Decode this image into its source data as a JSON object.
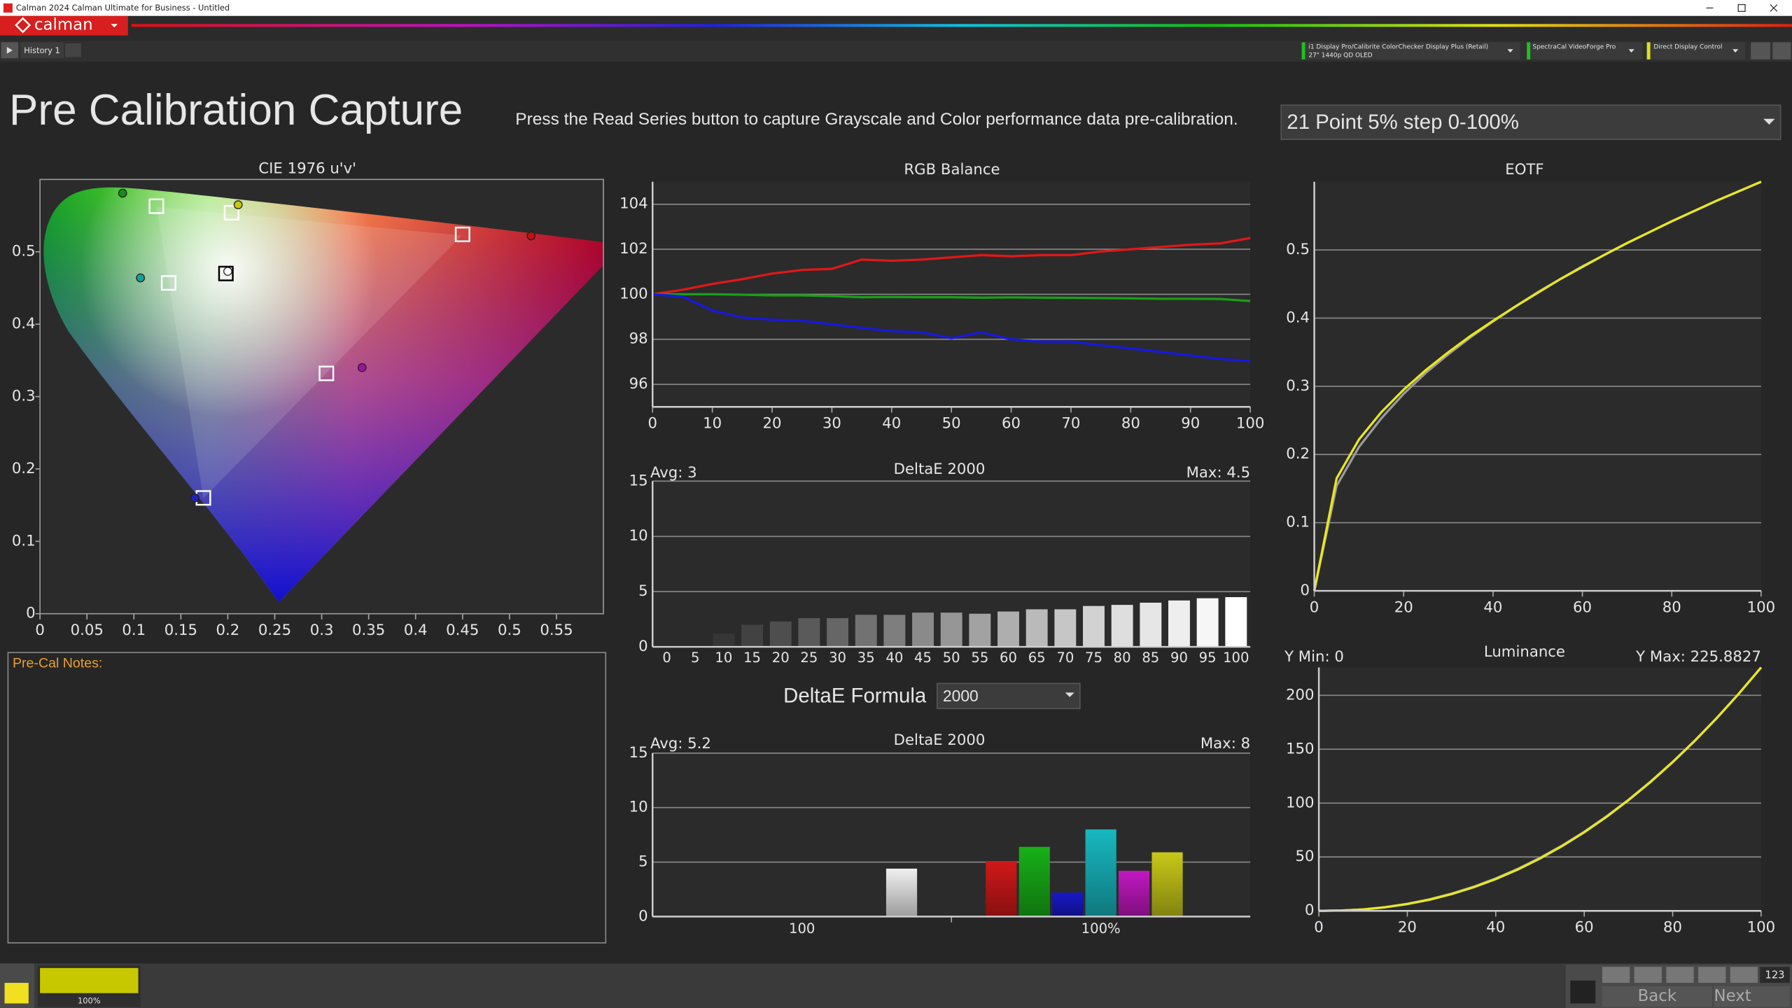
{
  "window": {
    "title": "Calman 2024 Calman Ultimate for Business  - Untitled"
  },
  "toolbar": {
    "logo": "calman",
    "tab": "History 1",
    "devices": [
      {
        "label": "i1 Display Pro/Calibrite ColorChecker Display Plus (Retail)",
        "sub": "27\" 1440p QD OLED"
      },
      {
        "label": "SpectraCal VideoForge Pro"
      },
      {
        "label": "Direct Display Control"
      }
    ]
  },
  "header": {
    "title": "Pre Calibration Capture",
    "instruction": "Press the Read Series button to capture Grayscale and Color performance data pre-calibration.",
    "series_select": "21 Point 5% step 0-100%"
  },
  "chart_data": [
    {
      "type": "scatter",
      "title": "CIE 1976 u'v'",
      "grid": false,
      "xlim": [
        0,
        0.6
      ],
      "ylim": [
        0,
        0.6
      ],
      "xticks": [
        0,
        0.05,
        0.1,
        0.15,
        0.2,
        0.25,
        0.3,
        0.35,
        0.4,
        0.45,
        0.5,
        0.55
      ],
      "yticks": [
        0,
        0.1,
        0.2,
        0.3,
        0.4,
        0.5
      ],
      "series": [
        {
          "marker": "square",
          "x": [
            0.45,
            0.124,
            0.174,
            0.137,
            0.305,
            0.204,
            0.198
          ],
          "y": [
            0.524,
            0.563,
            0.16,
            0.457,
            0.332,
            0.554,
            0.47
          ],
          "colors": [
            "#ffffff",
            "#ffffff",
            "#ffffff",
            "#ffffff",
            "#ffffff",
            "#ffffff",
            "#000000"
          ]
        },
        {
          "marker": "circle",
          "x": [
            0.523,
            0.088,
            0.165,
            0.107,
            0.343,
            0.211,
            0.2
          ],
          "y": [
            0.522,
            0.581,
            0.16,
            0.464,
            0.34,
            0.565,
            0.473
          ],
          "colors": [
            "#c01010",
            "#1a8a1a",
            "#2020c0",
            "#10a0a0",
            "#a010a0",
            "#c8c810",
            "#ffffff"
          ]
        }
      ]
    },
    {
      "type": "line",
      "title": "RGB Balance",
      "grid": true,
      "x": [
        0,
        5,
        10,
        15,
        20,
        25,
        30,
        35,
        40,
        45,
        50,
        55,
        60,
        65,
        70,
        75,
        80,
        85,
        90,
        95,
        100
      ],
      "xlim": [
        0,
        100
      ],
      "xticks": [
        0,
        10,
        20,
        30,
        40,
        50,
        60,
        70,
        80,
        90,
        100
      ],
      "ylim": [
        95,
        105
      ],
      "yticks": [
        96,
        98,
        100,
        102,
        104
      ],
      "series": [
        {
          "color": "#e01818",
          "values": [
            100,
            100.2,
            100.46,
            100.67,
            100.92,
            101.08,
            101.13,
            101.54,
            101.49,
            101.54,
            101.64,
            101.74,
            101.69,
            101.74,
            101.74,
            101.9,
            102.0,
            102.1,
            102.2,
            102.26,
            102.5
          ]
        },
        {
          "color": "#18a018",
          "values": [
            100,
            100,
            100,
            99.98,
            99.95,
            99.95,
            99.92,
            99.87,
            99.88,
            99.87,
            99.87,
            99.85,
            99.86,
            99.85,
            99.84,
            99.83,
            99.82,
            99.8,
            99.8,
            99.79,
            99.7
          ]
        },
        {
          "color": "#1818e0",
          "values": [
            100,
            99.9,
            99.28,
            98.97,
            98.87,
            98.82,
            98.67,
            98.51,
            98.36,
            98.31,
            98.05,
            98.31,
            98.0,
            97.9,
            97.9,
            97.74,
            97.59,
            97.44,
            97.28,
            97.13,
            97.03
          ]
        }
      ]
    },
    {
      "type": "bar",
      "title": "DeltaE 2000",
      "grid": true,
      "avg_label": "Avg: 3",
      "max_label": "Max: 4.5",
      "categories": [
        "0",
        "5",
        "10",
        "15",
        "20",
        "25",
        "30",
        "35",
        "40",
        "45",
        "50",
        "55",
        "60",
        "65",
        "70",
        "75",
        "80",
        "85",
        "90",
        "95",
        "100"
      ],
      "values": [
        0,
        0,
        1.2,
        2.0,
        2.3,
        2.6,
        2.6,
        2.9,
        2.9,
        3.1,
        3.1,
        3.0,
        3.2,
        3.4,
        3.4,
        3.7,
        3.8,
        4.0,
        4.2,
        4.4,
        4.5
      ],
      "colors": [
        "#1e1e1e",
        "#2a2a2a",
        "#363636",
        "#424242",
        "#4e4e4e",
        "#5a5a5a",
        "#666666",
        "#727272",
        "#7e7e7e",
        "#8a8a8a",
        "#969696",
        "#a2a2a2",
        "#aeaeae",
        "#bababa",
        "#c6c6c6",
        "#d2d2d2",
        "#dedede",
        "#e6e6e6",
        "#eeeeee",
        "#f6f6f6",
        "#ffffff"
      ],
      "ylim": [
        0,
        15
      ],
      "yticks": [
        0,
        5,
        10,
        15
      ]
    },
    {
      "type": "grouped_bar",
      "title": "DeltaE 2000",
      "grid": true,
      "avg_label": "Avg: 5.2",
      "max_label": "Max: 8",
      "categories": [
        "100",
        "100%"
      ],
      "groups": [
        {
          "values": [
            4.4
          ],
          "colors": [
            "#f0f0f0"
          ]
        },
        {
          "values": [
            5.1,
            6.4,
            2.2,
            8,
            4.2,
            5.9
          ],
          "colors": [
            "#d01818",
            "#18b018",
            "#1818c8",
            "#18b8c0",
            "#c018c0",
            "#c8c818"
          ]
        }
      ],
      "ylim": [
        0,
        15
      ],
      "yticks": [
        0,
        5,
        10,
        15
      ]
    },
    {
      "type": "line",
      "title": "EOTF",
      "grid": true,
      "x": [
        0,
        5,
        10,
        15,
        20,
        25,
        30,
        35,
        40,
        45,
        50,
        55,
        60,
        65,
        70,
        75,
        80,
        85,
        90,
        95,
        100
      ],
      "xlim": [
        0,
        100
      ],
      "xticks": [
        0,
        20,
        40,
        60,
        80,
        100
      ],
      "ylim": [
        0,
        0.6
      ],
      "yticks": [
        0,
        0.1,
        0.2,
        0.3,
        0.4,
        0.5
      ],
      "series": [
        {
          "color": "#9a9a9a",
          "values": [
            0,
            0.154,
            0.211,
            0.253,
            0.289,
            0.32,
            0.347,
            0.372,
            0.395,
            0.417,
            0.438,
            0.457,
            0.476,
            0.493,
            0.51,
            0.526,
            0.542,
            0.557,
            0.572,
            0.586,
            0.6
          ]
        },
        {
          "color": "#e8e820",
          "values": [
            0,
            0.165,
            0.222,
            0.262,
            0.295,
            0.324,
            0.35,
            0.374,
            0.396,
            0.417,
            0.437,
            0.457,
            0.475,
            0.493,
            0.51,
            0.526,
            0.542,
            0.557,
            0.572,
            0.586,
            0.6
          ]
        }
      ]
    },
    {
      "type": "line",
      "title": "Luminance",
      "grid": true,
      "ymin_label": "Y Min: 0",
      "ymax_label": "Y Max: 225.8827",
      "x": [
        0,
        5,
        10,
        15,
        20,
        25,
        30,
        35,
        40,
        45,
        50,
        55,
        60,
        65,
        70,
        75,
        80,
        85,
        90,
        95,
        100
      ],
      "xlim": [
        0,
        100
      ],
      "xticks": [
        0,
        20,
        40,
        60,
        80,
        100
      ],
      "ylim": [
        0,
        225.8827
      ],
      "yticks": [
        0,
        50,
        100,
        150,
        200
      ],
      "series": [
        {
          "color": "#9a9a9a",
          "values": [
            0,
            0.3,
            1.4,
            3.5,
            6.6,
            10.7,
            16.0,
            22.4,
            30.1,
            39.0,
            49.2,
            60.6,
            73.4,
            87.6,
            103.1,
            120.0,
            138.3,
            158.0,
            179.2,
            201.8,
            225.8827
          ]
        },
        {
          "color": "#e8e820",
          "values": [
            0,
            0.3,
            1.3,
            3.3,
            6.3,
            10.3,
            15.5,
            21.9,
            29.5,
            38.4,
            48.6,
            60.1,
            72.9,
            87.1,
            102.7,
            119.6,
            138.0,
            157.8,
            179.0,
            201.7,
            225.8827
          ]
        }
      ]
    }
  ],
  "deltae_formula": {
    "label": "DeltaE Formula",
    "value": "2000"
  },
  "notes": {
    "label": "Pre-Cal Notes:"
  },
  "footer": {
    "swatch_label": "100%",
    "back": "Back",
    "next": "Next",
    "counter": "123"
  }
}
